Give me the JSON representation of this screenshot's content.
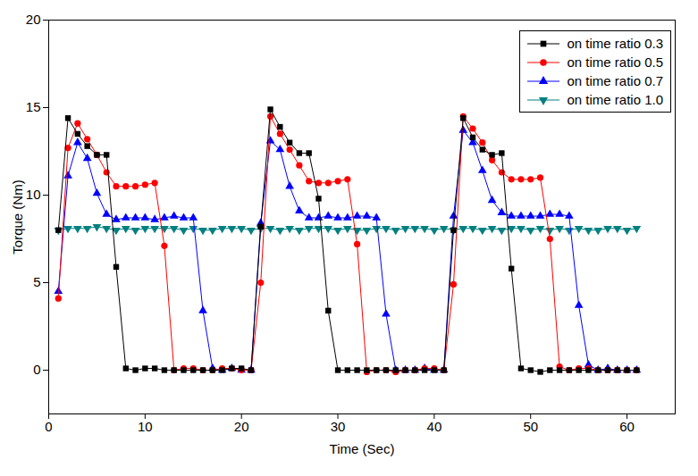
{
  "chart_data": {
    "type": "line",
    "x_label": "Time (Sec)",
    "y_label": "Torque (Nm)",
    "x": [
      1,
      2,
      3,
      4,
      5,
      6,
      7,
      8,
      9,
      10,
      11,
      12,
      13,
      14,
      15,
      16,
      17,
      18,
      19,
      20,
      21,
      22,
      23,
      24,
      25,
      26,
      27,
      28,
      29,
      30,
      31,
      32,
      33,
      34,
      35,
      36,
      37,
      38,
      39,
      40,
      41,
      42,
      43,
      44,
      45,
      46,
      47,
      48,
      49,
      50,
      51,
      52,
      53,
      54,
      55,
      56,
      57,
      58,
      59,
      60,
      61
    ],
    "xlim": [
      0,
      65
    ],
    "xticks": [
      0,
      10,
      20,
      30,
      40,
      50,
      60
    ],
    "ylim": [
      -2.5,
      20
    ],
    "yticks": [
      0,
      5,
      10,
      15,
      20
    ],
    "legend": "top-right",
    "series": [
      {
        "name": "on time ratio 0.3",
        "color": "#000000",
        "marker": "square",
        "values": [
          8.0,
          14.4,
          13.5,
          12.8,
          12.3,
          12.3,
          5.9,
          0.1,
          0,
          0.1,
          0.1,
          0,
          0,
          0,
          0,
          0,
          0,
          0,
          0.1,
          0.1,
          0,
          8.2,
          14.9,
          13.9,
          13.0,
          12.4,
          12.4,
          9.8,
          3.4,
          0,
          0,
          0,
          0,
          0,
          0,
          0,
          0,
          0,
          0,
          0,
          0,
          8.0,
          14.4,
          13.3,
          12.6,
          12.3,
          12.4,
          5.8,
          0.1,
          0,
          -0.1,
          0,
          0,
          0,
          0,
          0,
          0,
          0,
          0,
          0,
          0
        ]
      },
      {
        "name": "on time ratio 0.5",
        "color": "#ff0000",
        "marker": "circle",
        "values": [
          4.1,
          12.7,
          14.1,
          13.2,
          12.3,
          11.3,
          10.5,
          10.5,
          10.5,
          10.6,
          10.7,
          7.1,
          0,
          0.1,
          0.1,
          0,
          0,
          0.1,
          0.1,
          0,
          0,
          5.0,
          14.5,
          13.5,
          12.6,
          11.7,
          10.8,
          10.7,
          10.7,
          10.8,
          10.9,
          7.2,
          -0.1,
          0,
          0,
          -0.1,
          0,
          0,
          0.1,
          0.1,
          0,
          4.9,
          14.5,
          13.8,
          13.0,
          12.0,
          11.3,
          10.9,
          10.9,
          10.9,
          11.0,
          7.5,
          0.2,
          0,
          0.1,
          0.1,
          0,
          0,
          0,
          0,
          0
        ]
      },
      {
        "name": "on time ratio 0.7",
        "color": "#0000ff",
        "marker": "triangle",
        "values": [
          4.5,
          11.1,
          13.0,
          12.1,
          10.1,
          8.9,
          8.6,
          8.7,
          8.7,
          8.7,
          8.6,
          8.7,
          8.8,
          8.7,
          8.7,
          3.4,
          0.1,
          0,
          0.1,
          0,
          0,
          8.4,
          13.1,
          12.6,
          10.5,
          9.1,
          8.7,
          8.7,
          8.8,
          8.7,
          8.7,
          8.8,
          8.8,
          8.7,
          3.2,
          0,
          0,
          0,
          0.1,
          0,
          0,
          8.8,
          13.7,
          13.0,
          11.4,
          9.7,
          9.0,
          8.8,
          8.8,
          8.8,
          8.8,
          8.9,
          8.9,
          8.8,
          3.7,
          0.3,
          0,
          0.1,
          0,
          0,
          0
        ]
      },
      {
        "name": "on time ratio 1.0",
        "color": "#008080",
        "marker": "triangle-down",
        "values": [
          8.0,
          8.1,
          8.1,
          8.1,
          8.2,
          8.1,
          8.0,
          8.1,
          8.0,
          8.1,
          8.1,
          8.1,
          8.1,
          8.0,
          8.1,
          8.0,
          8.0,
          8.1,
          8.1,
          8.1,
          8.0,
          8.1,
          8.1,
          8.0,
          8.1,
          8.0,
          8.1,
          8.1,
          8.1,
          8.0,
          8.1,
          8.0,
          8.0,
          8.1,
          8.1,
          8.0,
          8.1,
          8.1,
          8.1,
          8.0,
          8.1,
          8.0,
          8.1,
          8.1,
          8.0,
          8.1,
          8.0,
          8.1,
          8.1,
          8.0,
          8.1,
          8.0,
          8.1,
          8.0,
          8.1,
          8.0,
          8.0,
          8.1,
          8.1,
          8.0,
          8.1
        ]
      }
    ]
  }
}
